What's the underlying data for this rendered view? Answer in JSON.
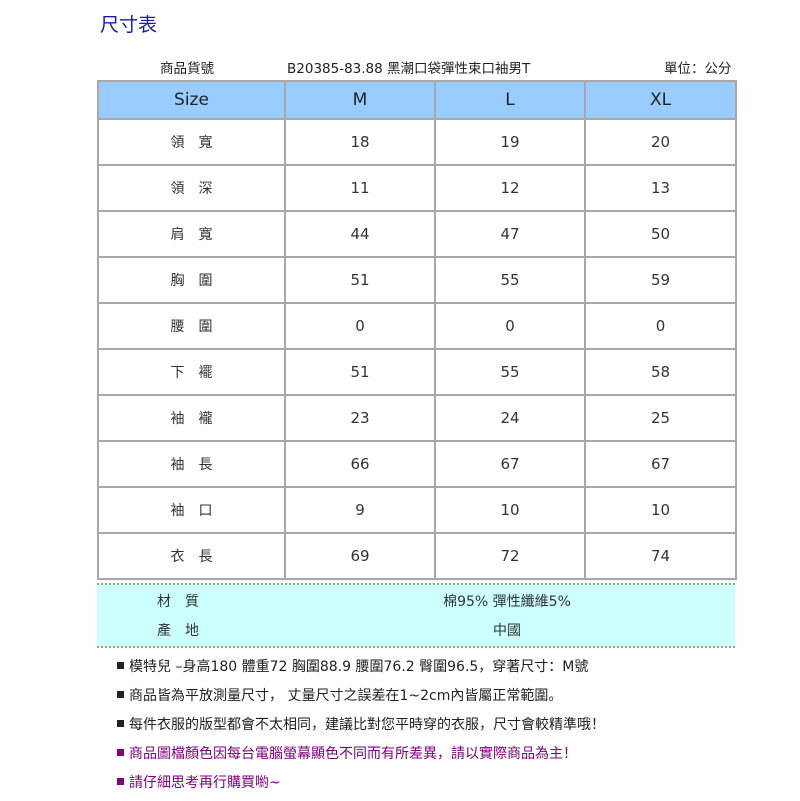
{
  "title": "尺寸表",
  "product_label": "商品貨號",
  "product_name": "B20385-83.88 黑潮口袋彈性束口袖男T",
  "unit": "單位：公分",
  "table": {
    "headers": [
      "Size",
      "M",
      "L",
      "XL"
    ],
    "rows": [
      {
        "label": "領寬",
        "values": [
          "18",
          "19",
          "20"
        ]
      },
      {
        "label": "領深",
        "values": [
          "11",
          "12",
          "13"
        ]
      },
      {
        "label": "肩寬",
        "values": [
          "44",
          "47",
          "50"
        ]
      },
      {
        "label": "胸圍",
        "values": [
          "51",
          "55",
          "59"
        ]
      },
      {
        "label": "腰圍",
        "values": [
          "0",
          "0",
          "0"
        ]
      },
      {
        "label": "下襬",
        "values": [
          "51",
          "55",
          "58"
        ]
      },
      {
        "label": "袖襱",
        "values": [
          "23",
          "24",
          "25"
        ]
      },
      {
        "label": "袖長",
        "values": [
          "66",
          "67",
          "67"
        ]
      },
      {
        "label": "袖口",
        "values": [
          "9",
          "10",
          "10"
        ]
      },
      {
        "label": "衣長",
        "values": [
          "69",
          "72",
          "74"
        ]
      }
    ]
  },
  "info": [
    {
      "label": "材質",
      "value": "棉95% 彈性纖維5%"
    },
    {
      "label": "產地",
      "value": "中國"
    }
  ],
  "notes": [
    {
      "text": "模特兒 –身高180 體重72 胸圍88.9 腰圍76.2 臀圍96.5，穿著尺寸：M號",
      "color": "#222222"
    },
    {
      "text": "商品皆為平放測量尺寸， 丈量尺寸之誤差在1~2cm內皆屬正常範圍。",
      "color": "#222222"
    },
    {
      "text": "每件衣服的版型都會不太相同，建議比對您平時穿的衣服，尺寸會較精準哦！",
      "color": "#222222"
    },
    {
      "text": "商品圖檔顏色因每台電腦螢幕顯色不同而有所差異，請以實際商品為主！",
      "color": "#800080"
    },
    {
      "text": "請仔細思考再行購買喲~",
      "color": "#800080"
    }
  ]
}
